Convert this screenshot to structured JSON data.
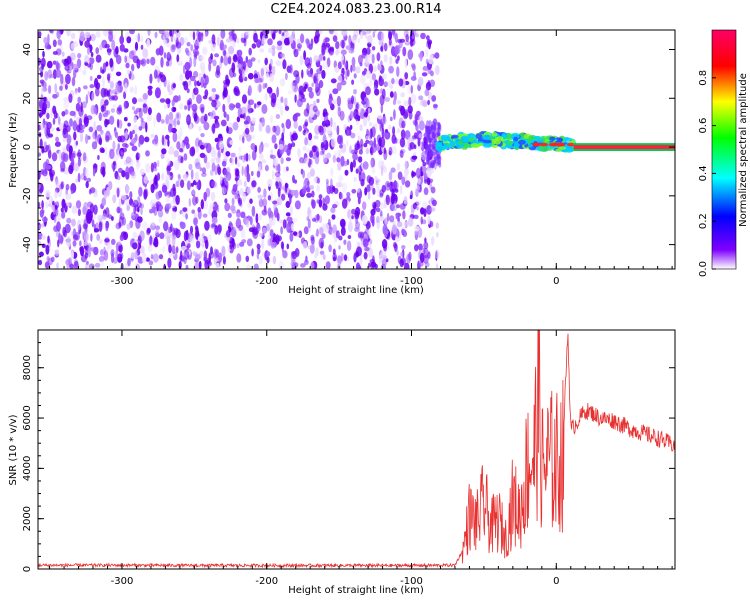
{
  "title": "C2E4.2024.083.23.00.R14",
  "colors": {
    "snr_line": "#e83030",
    "axis": "#000000",
    "spectrogram_low": "#7a2cff",
    "colorbar_stops": [
      "#ffffff",
      "#7f00ff",
      "#0000ff",
      "#00ffff",
      "#00ff00",
      "#ffff00",
      "#ff0000",
      "#ff0066"
    ]
  },
  "chart_data": [
    {
      "type": "heatmap",
      "name": "spectrogram",
      "xlabel": "Height of straight line (km)",
      "ylabel": "Frequency (Hz)",
      "xlim": [
        -358,
        82
      ],
      "ylim": [
        -50,
        48
      ],
      "x_ticks": [
        -300,
        -200,
        -100,
        0
      ],
      "y_ticks": [
        -40,
        -20,
        0,
        20,
        40
      ],
      "colorbar": {
        "label": "Normalized spectral amplitude",
        "range": [
          0.0,
          1.0
        ],
        "ticks": [
          "0.0",
          "0.2",
          "0.4",
          "0.6",
          "0.8"
        ]
      },
      "regions": [
        {
          "description": "broadband noise",
          "x_range": [
            -358,
            -82
          ],
          "freq_range": [
            -50,
            48
          ],
          "amplitude": 0.1
        },
        {
          "description": "narrow carrier with drift",
          "x_range": [
            -82,
            12
          ],
          "freq_center": [
            3,
            1
          ],
          "amplitude": 0.4
        },
        {
          "description": "steady carrier",
          "x_range": [
            12,
            82
          ],
          "freq_center": 0,
          "amplitude": 0.95
        }
      ]
    },
    {
      "type": "line",
      "name": "snr",
      "xlabel": "Height of straight line (km)",
      "ylabel": "SNR (10 * v/v)",
      "xlim": [
        -358,
        82
      ],
      "ylim": [
        0,
        9500
      ],
      "x_ticks": [
        -300,
        -200,
        -100,
        0
      ],
      "y_ticks": [
        0,
        2000,
        4000,
        6000,
        8000
      ],
      "series": [
        {
          "x": [
            -358,
            -300,
            -250,
            -200,
            -150,
            -100,
            -70,
            -65,
            -60,
            -55,
            -50,
            -45,
            -40,
            -35,
            -30,
            -25,
            -20,
            -15,
            -12,
            -10,
            -5,
            0,
            5,
            8,
            10,
            15,
            20,
            25,
            30,
            40,
            50,
            60,
            70,
            82
          ],
          "y": [
            150,
            150,
            140,
            140,
            140,
            140,
            150,
            700,
            2600,
            2200,
            3200,
            2000,
            2400,
            1500,
            3300,
            2600,
            5000,
            5500,
            8800,
            4800,
            5200,
            5100,
            5500,
            9500,
            5500,
            5900,
            6300,
            6200,
            6000,
            5900,
            5600,
            5400,
            5200,
            4900
          ]
        }
      ]
    }
  ]
}
